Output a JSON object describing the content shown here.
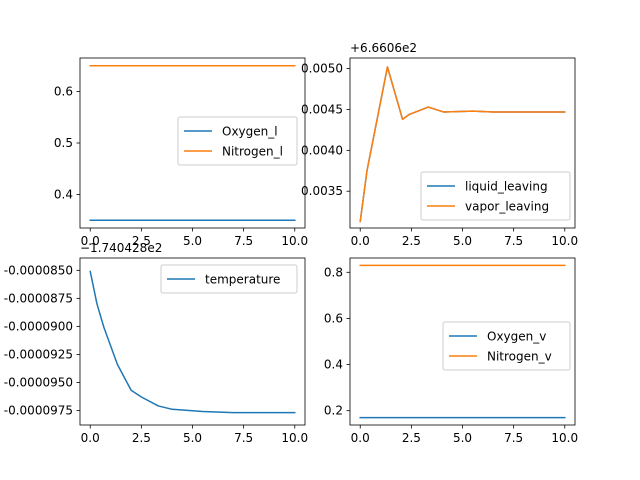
{
  "chart_data": [
    {
      "type": "line",
      "x_ticks": [
        "0.0",
        "2.5",
        "5.0",
        "7.5",
        "10.0"
      ],
      "x_tick_values": [
        0,
        2.5,
        5,
        7.5,
        10
      ],
      "y_ticks": [
        "0.4",
        "0.5",
        "0.6"
      ],
      "y_tick_values": [
        0.4,
        0.5,
        0.6
      ],
      "xlim": [
        -0.5,
        10.5
      ],
      "ylim": [
        0.335,
        0.665
      ],
      "y_offset_label": "",
      "legend_loc": "center-right",
      "series": [
        {
          "name": "Oxygen_l",
          "color": "#1f77b4",
          "x": [
            0,
            10
          ],
          "y": [
            0.35,
            0.35
          ]
        },
        {
          "name": "Nitrogen_l",
          "color": "#ff7f0e",
          "x": [
            0,
            10
          ],
          "y": [
            0.65,
            0.65
          ]
        }
      ]
    },
    {
      "type": "line",
      "x_ticks": [
        "0.0",
        "2.5",
        "5.0",
        "7.5",
        "10.0"
      ],
      "x_tick_values": [
        0,
        2.5,
        5,
        7.5,
        10
      ],
      "y_ticks": [
        "0.0035",
        "0.0040",
        "0.0045",
        "0.0050"
      ],
      "y_tick_values": [
        0.0035,
        0.004,
        0.0045,
        0.005
      ],
      "xlim": [
        -0.5,
        10.5
      ],
      "ylim": [
        0.00305,
        0.00513
      ],
      "y_offset_label": "+6.6606e2",
      "legend_loc": "lower-right",
      "series": [
        {
          "name": "liquid_leaving",
          "color": "#1f77b4",
          "x": [
            0,
            0.33,
            1.33,
            2.07,
            2.4,
            3.33,
            4.07,
            5.5,
            6.5,
            10
          ],
          "y": [
            0.00313,
            0.00375,
            0.00502,
            0.00438,
            0.00444,
            0.00453,
            0.00447,
            0.00448,
            0.00447,
            0.00447
          ]
        },
        {
          "name": "vapor_leaving",
          "color": "#ff7f0e",
          "x": [
            0,
            0.33,
            1.33,
            2.07,
            2.4,
            3.33,
            4.07,
            5.5,
            6.5,
            10
          ],
          "y": [
            0.00313,
            0.00375,
            0.00502,
            0.00438,
            0.00444,
            0.00453,
            0.00447,
            0.00448,
            0.00447,
            0.00447
          ]
        }
      ]
    },
    {
      "type": "line",
      "x_ticks": [
        "0.0",
        "2.5",
        "5.0",
        "7.5",
        "10.0"
      ],
      "x_tick_values": [
        0,
        2.5,
        5,
        7.5,
        10
      ],
      "y_ticks": [
        "-0.0000850",
        "-0.0000875",
        "-0.0000900",
        "-0.0000925",
        "-0.0000950",
        "-0.0000975"
      ],
      "y_tick_values": [
        -8.5e-05,
        -8.75e-05,
        -9e-05,
        -9.25e-05,
        -9.5e-05,
        -9.75e-05
      ],
      "xlim": [
        -0.5,
        10.5
      ],
      "ylim": [
        -9.88e-05,
        -8.39e-05
      ],
      "y_offset_label": "−1.740428e2",
      "legend_loc": "upper-right",
      "series": [
        {
          "name": "temperature",
          "color": "#1f77b4",
          "x": [
            0,
            0.33,
            0.67,
            1.33,
            2.0,
            2.5,
            3.33,
            4.0,
            5.5,
            7,
            10
          ],
          "y": [
            -8.51e-05,
            -8.8e-05,
            -9.01e-05,
            -9.34e-05,
            -9.57e-05,
            -9.63e-05,
            -9.71e-05,
            -9.74e-05,
            -9.76e-05,
            -9.77e-05,
            -9.77e-05
          ]
        }
      ]
    },
    {
      "type": "line",
      "x_ticks": [
        "0.0",
        "2.5",
        "5.0",
        "7.5",
        "10.0"
      ],
      "x_tick_values": [
        0,
        2.5,
        5,
        7.5,
        10
      ],
      "y_ticks": [
        "0.2",
        "0.4",
        "0.6",
        "0.8"
      ],
      "y_tick_values": [
        0.2,
        0.4,
        0.6,
        0.8
      ],
      "xlim": [
        -0.5,
        10.5
      ],
      "ylim": [
        0.138,
        0.862
      ],
      "y_offset_label": "",
      "legend_loc": "center-right",
      "series": [
        {
          "name": "Oxygen_v",
          "color": "#1f77b4",
          "x": [
            0,
            10
          ],
          "y": [
            0.17,
            0.17
          ]
        },
        {
          "name": "Nitrogen_v",
          "color": "#ff7f0e",
          "x": [
            0,
            10
          ],
          "y": [
            0.83,
            0.83
          ]
        }
      ]
    }
  ]
}
